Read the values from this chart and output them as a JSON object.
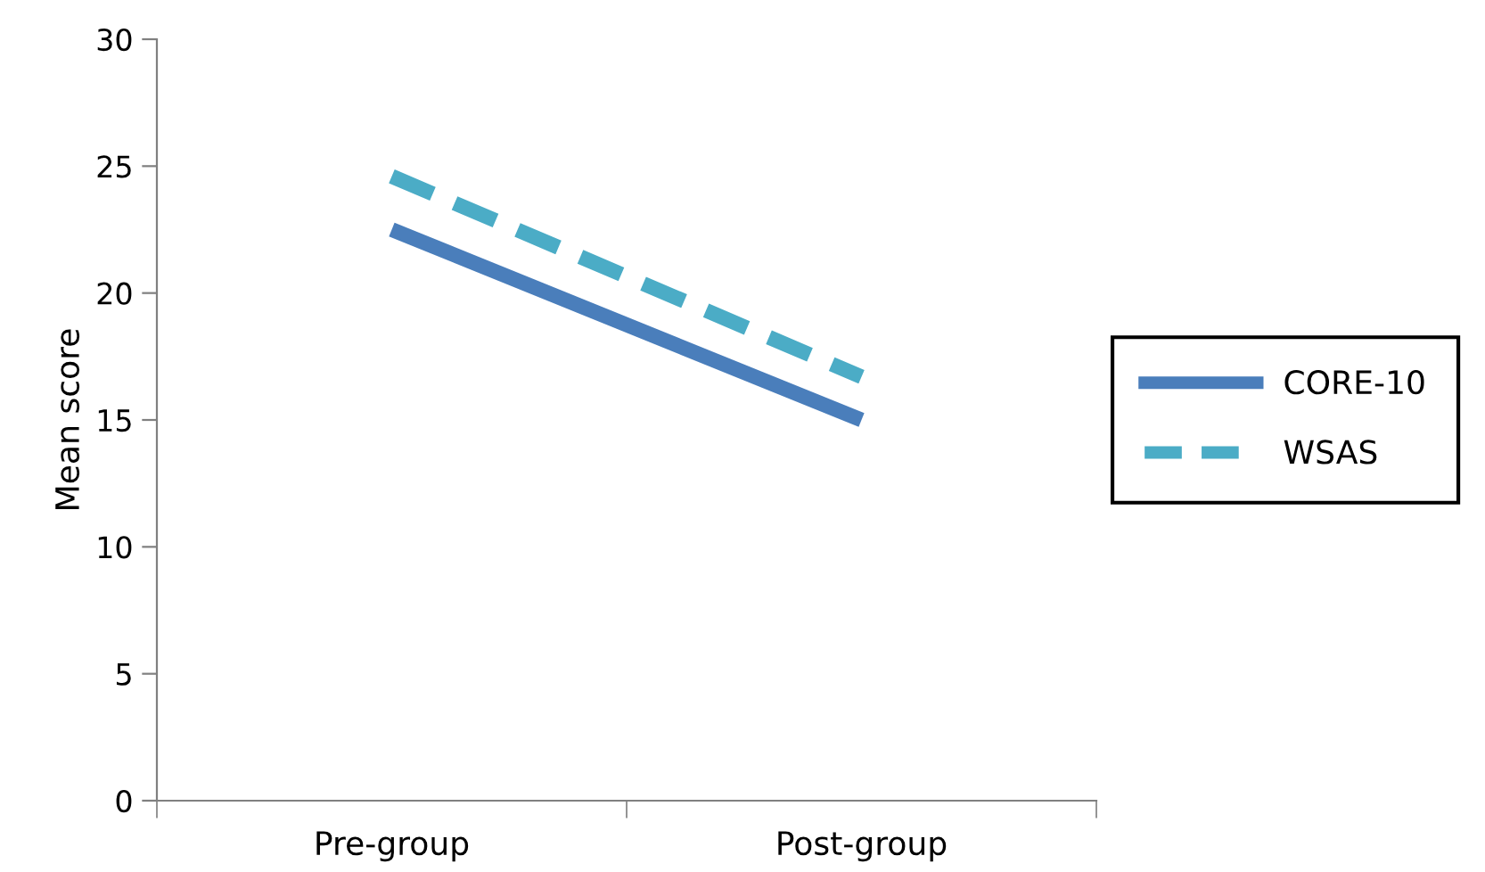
{
  "chart_data": {
    "type": "line",
    "ylabel": "Mean score",
    "categories": [
      "Pre-group",
      "Post-group"
    ],
    "series": [
      {
        "name": "CORE-10",
        "color": "#4a7ebb",
        "values": [
          22.5,
          15.0
        ],
        "line_style": "solid"
      },
      {
        "name": "WSAS",
        "color": "#4bacc6",
        "values": [
          24.6,
          16.7
        ],
        "line_style": "dashed"
      }
    ],
    "ylim": [
      0,
      30
    ],
    "yticks": [
      0,
      5,
      10,
      15,
      20,
      25,
      30
    ],
    "grid": false,
    "legend": "right",
    "marker": "none"
  }
}
